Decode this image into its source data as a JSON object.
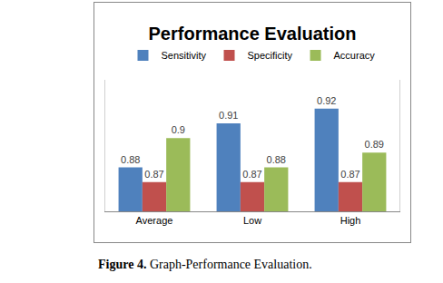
{
  "chart_data": {
    "type": "bar",
    "title": "Performance Evaluation",
    "categories": [
      "Average",
      "Low",
      "High"
    ],
    "series": [
      {
        "name": "Sensitivity",
        "color": "#4f81bd",
        "values": [
          0.88,
          0.91,
          0.92
        ]
      },
      {
        "name": "Specificity",
        "color": "#c0504d",
        "values": [
          0.87,
          0.87,
          0.87
        ]
      },
      {
        "name": "Accuracy",
        "color": "#9bbb59",
        "values": [
          0.9,
          0.88,
          0.89
        ]
      }
    ],
    "ylim": [
      0.85,
      0.94
    ],
    "legend": "top",
    "data_labels": true,
    "tick_labels": "x",
    "grid": false,
    "caption": "Figure 4. Graph-Performance Evaluation."
  }
}
